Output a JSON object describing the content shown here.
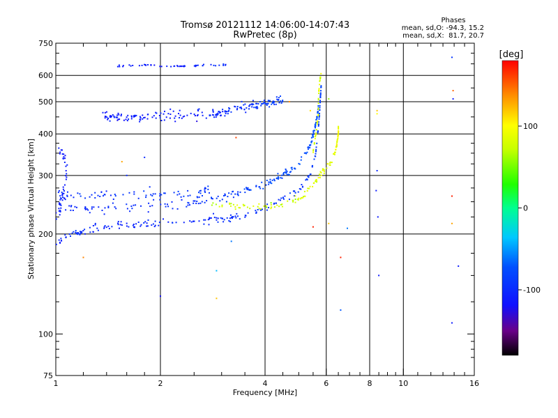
{
  "chart_data": {
    "type": "scatter",
    "title": "Tromsø 20121112 14:06:00-14:07:43",
    "subtitle": "RwPretec (8p)",
    "xlabel": "Frequency [MHz]",
    "ylabel": "Stationary phase Virtual Height [km]",
    "x_scale": "log",
    "y_scale": "log",
    "xlim": [
      1,
      16
    ],
    "ylim": [
      75,
      750
    ],
    "x_ticks": [
      1,
      2,
      4,
      6,
      8,
      10,
      16
    ],
    "y_ticks": [
      75,
      100,
      200,
      300,
      400,
      500,
      600,
      750
    ],
    "x_grid": [
      2,
      4,
      6,
      8,
      10
    ],
    "y_grid": [
      200,
      300,
      400,
      500,
      600
    ],
    "stats": {
      "title": "Phases",
      "lines": [
        "mean, sd,O: -94.3, 15.2",
        "mean, sd,X:  81.7, 20.7"
      ]
    },
    "colorbar": {
      "label": "[deg]",
      "range": [
        -180,
        180
      ],
      "ticks": [
        {
          "value": 100,
          "label": "100"
        },
        {
          "value": 0,
          "label": "0"
        },
        {
          "value": -100,
          "label": "-100"
        }
      ]
    },
    "traces": [
      {
        "points": [
          [
            1.0,
            185,
            -105
          ],
          [
            1.05,
            192,
            -100
          ],
          [
            1.1,
            198,
            -95
          ],
          [
            1.2,
            203,
            -100
          ],
          [
            1.4,
            210,
            -105
          ],
          [
            1.7,
            213,
            -100
          ],
          [
            2.0,
            215,
            -100
          ],
          [
            2.5,
            218,
            -100
          ],
          [
            3.0,
            222,
            -98
          ],
          [
            3.5,
            228,
            -95
          ],
          [
            4.0,
            240,
            -92
          ],
          [
            4.5,
            255,
            -90
          ],
          [
            5.0,
            270,
            -90
          ],
          [
            5.4,
            300,
            -88
          ],
          [
            5.6,
            350,
            -85
          ],
          [
            5.7,
            420,
            -85
          ],
          [
            5.75,
            480,
            -85
          ],
          [
            5.8,
            560,
            -80
          ]
        ],
        "count": 220,
        "height_spread": 6,
        "phase_spread": 10
      },
      {
        "points": [
          [
            1.0,
            240,
            -105
          ],
          [
            1.2,
            238,
            -100
          ],
          [
            1.5,
            240,
            -100
          ],
          [
            2.0,
            243,
            -98
          ],
          [
            2.5,
            250,
            -95
          ],
          [
            3.0,
            258,
            -90
          ],
          [
            3.5,
            268,
            -85
          ],
          [
            4.0,
            282,
            -80
          ],
          [
            4.5,
            300,
            -78
          ],
          [
            5.0,
            325,
            -75
          ],
          [
            5.4,
            370,
            -75
          ],
          [
            5.6,
            430,
            -75
          ],
          [
            5.7,
            480,
            -75
          ]
        ],
        "count": 200,
        "height_spread": 8,
        "phase_spread": 10
      },
      {
        "points": [
          [
            1.0,
            265,
            -100
          ],
          [
            1.2,
            262,
            -95
          ],
          [
            1.5,
            262,
            -95
          ],
          [
            2.0,
            262,
            -92
          ],
          [
            2.5,
            265,
            -90
          ],
          [
            2.8,
            270,
            -90
          ]
        ],
        "count": 80,
        "height_spread": 10,
        "phase_spread": 10
      },
      {
        "points": [
          [
            1.0,
            215,
            -110
          ],
          [
            1.05,
            260,
            -110
          ],
          [
            1.08,
            320,
            -110
          ],
          [
            1.02,
            360,
            -110
          ]
        ],
        "count": 40,
        "height_spread": 18,
        "phase_spread": 10
      },
      {
        "points": [
          [
            2.8,
            248,
            75
          ],
          [
            3.2,
            245,
            78
          ],
          [
            3.6,
            242,
            80
          ],
          [
            4.0,
            243,
            80
          ],
          [
            4.5,
            245,
            78
          ],
          [
            5.0,
            255,
            80
          ],
          [
            5.3,
            270,
            82
          ],
          [
            5.6,
            290,
            85
          ],
          [
            5.9,
            310,
            85
          ],
          [
            6.2,
            330,
            85
          ],
          [
            6.4,
            360,
            90
          ],
          [
            6.5,
            400,
            95
          ],
          [
            6.5,
            420,
            100
          ]
        ],
        "count": 130,
        "height_spread": 6,
        "phase_spread": 18
      },
      {
        "points": [
          [
            5.5,
            350,
            85
          ],
          [
            5.6,
            400,
            85
          ],
          [
            5.7,
            460,
            80
          ],
          [
            5.7,
            520,
            80
          ],
          [
            5.75,
            580,
            85
          ],
          [
            5.8,
            610,
            90
          ]
        ],
        "count": 40,
        "height_spread": 5,
        "phase_spread": 18
      },
      {
        "points": [
          [
            1.35,
            450,
            -110
          ],
          [
            1.6,
            445,
            -110
          ],
          [
            2.0,
            450,
            -110
          ],
          [
            2.5,
            455,
            -110
          ],
          [
            3.0,
            465,
            -100
          ],
          [
            3.5,
            480,
            -95
          ],
          [
            4.0,
            495,
            -90
          ],
          [
            4.5,
            505,
            -85
          ]
        ],
        "count": 210,
        "height_spread": 16,
        "phase_spread": 12
      },
      {
        "points": [
          [
            1.5,
            640,
            -110
          ],
          [
            1.8,
            645,
            -110
          ],
          [
            2.1,
            640,
            -110
          ],
          [
            2.4,
            640,
            -110
          ],
          [
            2.8,
            645,
            -100
          ],
          [
            3.2,
            645,
            -100
          ]
        ],
        "count": 50,
        "height_spread": 4,
        "phase_spread": 10
      }
    ],
    "isolated_points": [
      [
        1.55,
        330,
        130
      ],
      [
        1.2,
        170,
        140
      ],
      [
        1.6,
        300,
        -100
      ],
      [
        1.8,
        340,
        -100
      ],
      [
        2.0,
        130,
        -120
      ],
      [
        2.9,
        155,
        -40
      ],
      [
        2.9,
        128,
        120
      ],
      [
        3.3,
        390,
        160
      ],
      [
        3.2,
        190,
        -60
      ],
      [
        4.7,
        500,
        140
      ],
      [
        5.5,
        210,
        170
      ],
      [
        5.4,
        470,
        110
      ],
      [
        6.1,
        215,
        120
      ],
      [
        6.6,
        170,
        170
      ],
      [
        6.6,
        118,
        -70
      ],
      [
        6.9,
        208,
        -60
      ],
      [
        6.1,
        510,
        60
      ],
      [
        8.4,
        460,
        100
      ],
      [
        8.4,
        470,
        120
      ],
      [
        8.4,
        310,
        -100
      ],
      [
        8.35,
        270,
        -110
      ],
      [
        8.45,
        225,
        -110
      ],
      [
        8.5,
        150,
        -110
      ],
      [
        13.8,
        680,
        -90
      ],
      [
        13.9,
        540,
        150
      ],
      [
        13.9,
        510,
        -110
      ],
      [
        13.8,
        260,
        170
      ],
      [
        13.8,
        215,
        130
      ],
      [
        14.4,
        160,
        -110
      ],
      [
        13.8,
        108,
        -110
      ]
    ]
  }
}
